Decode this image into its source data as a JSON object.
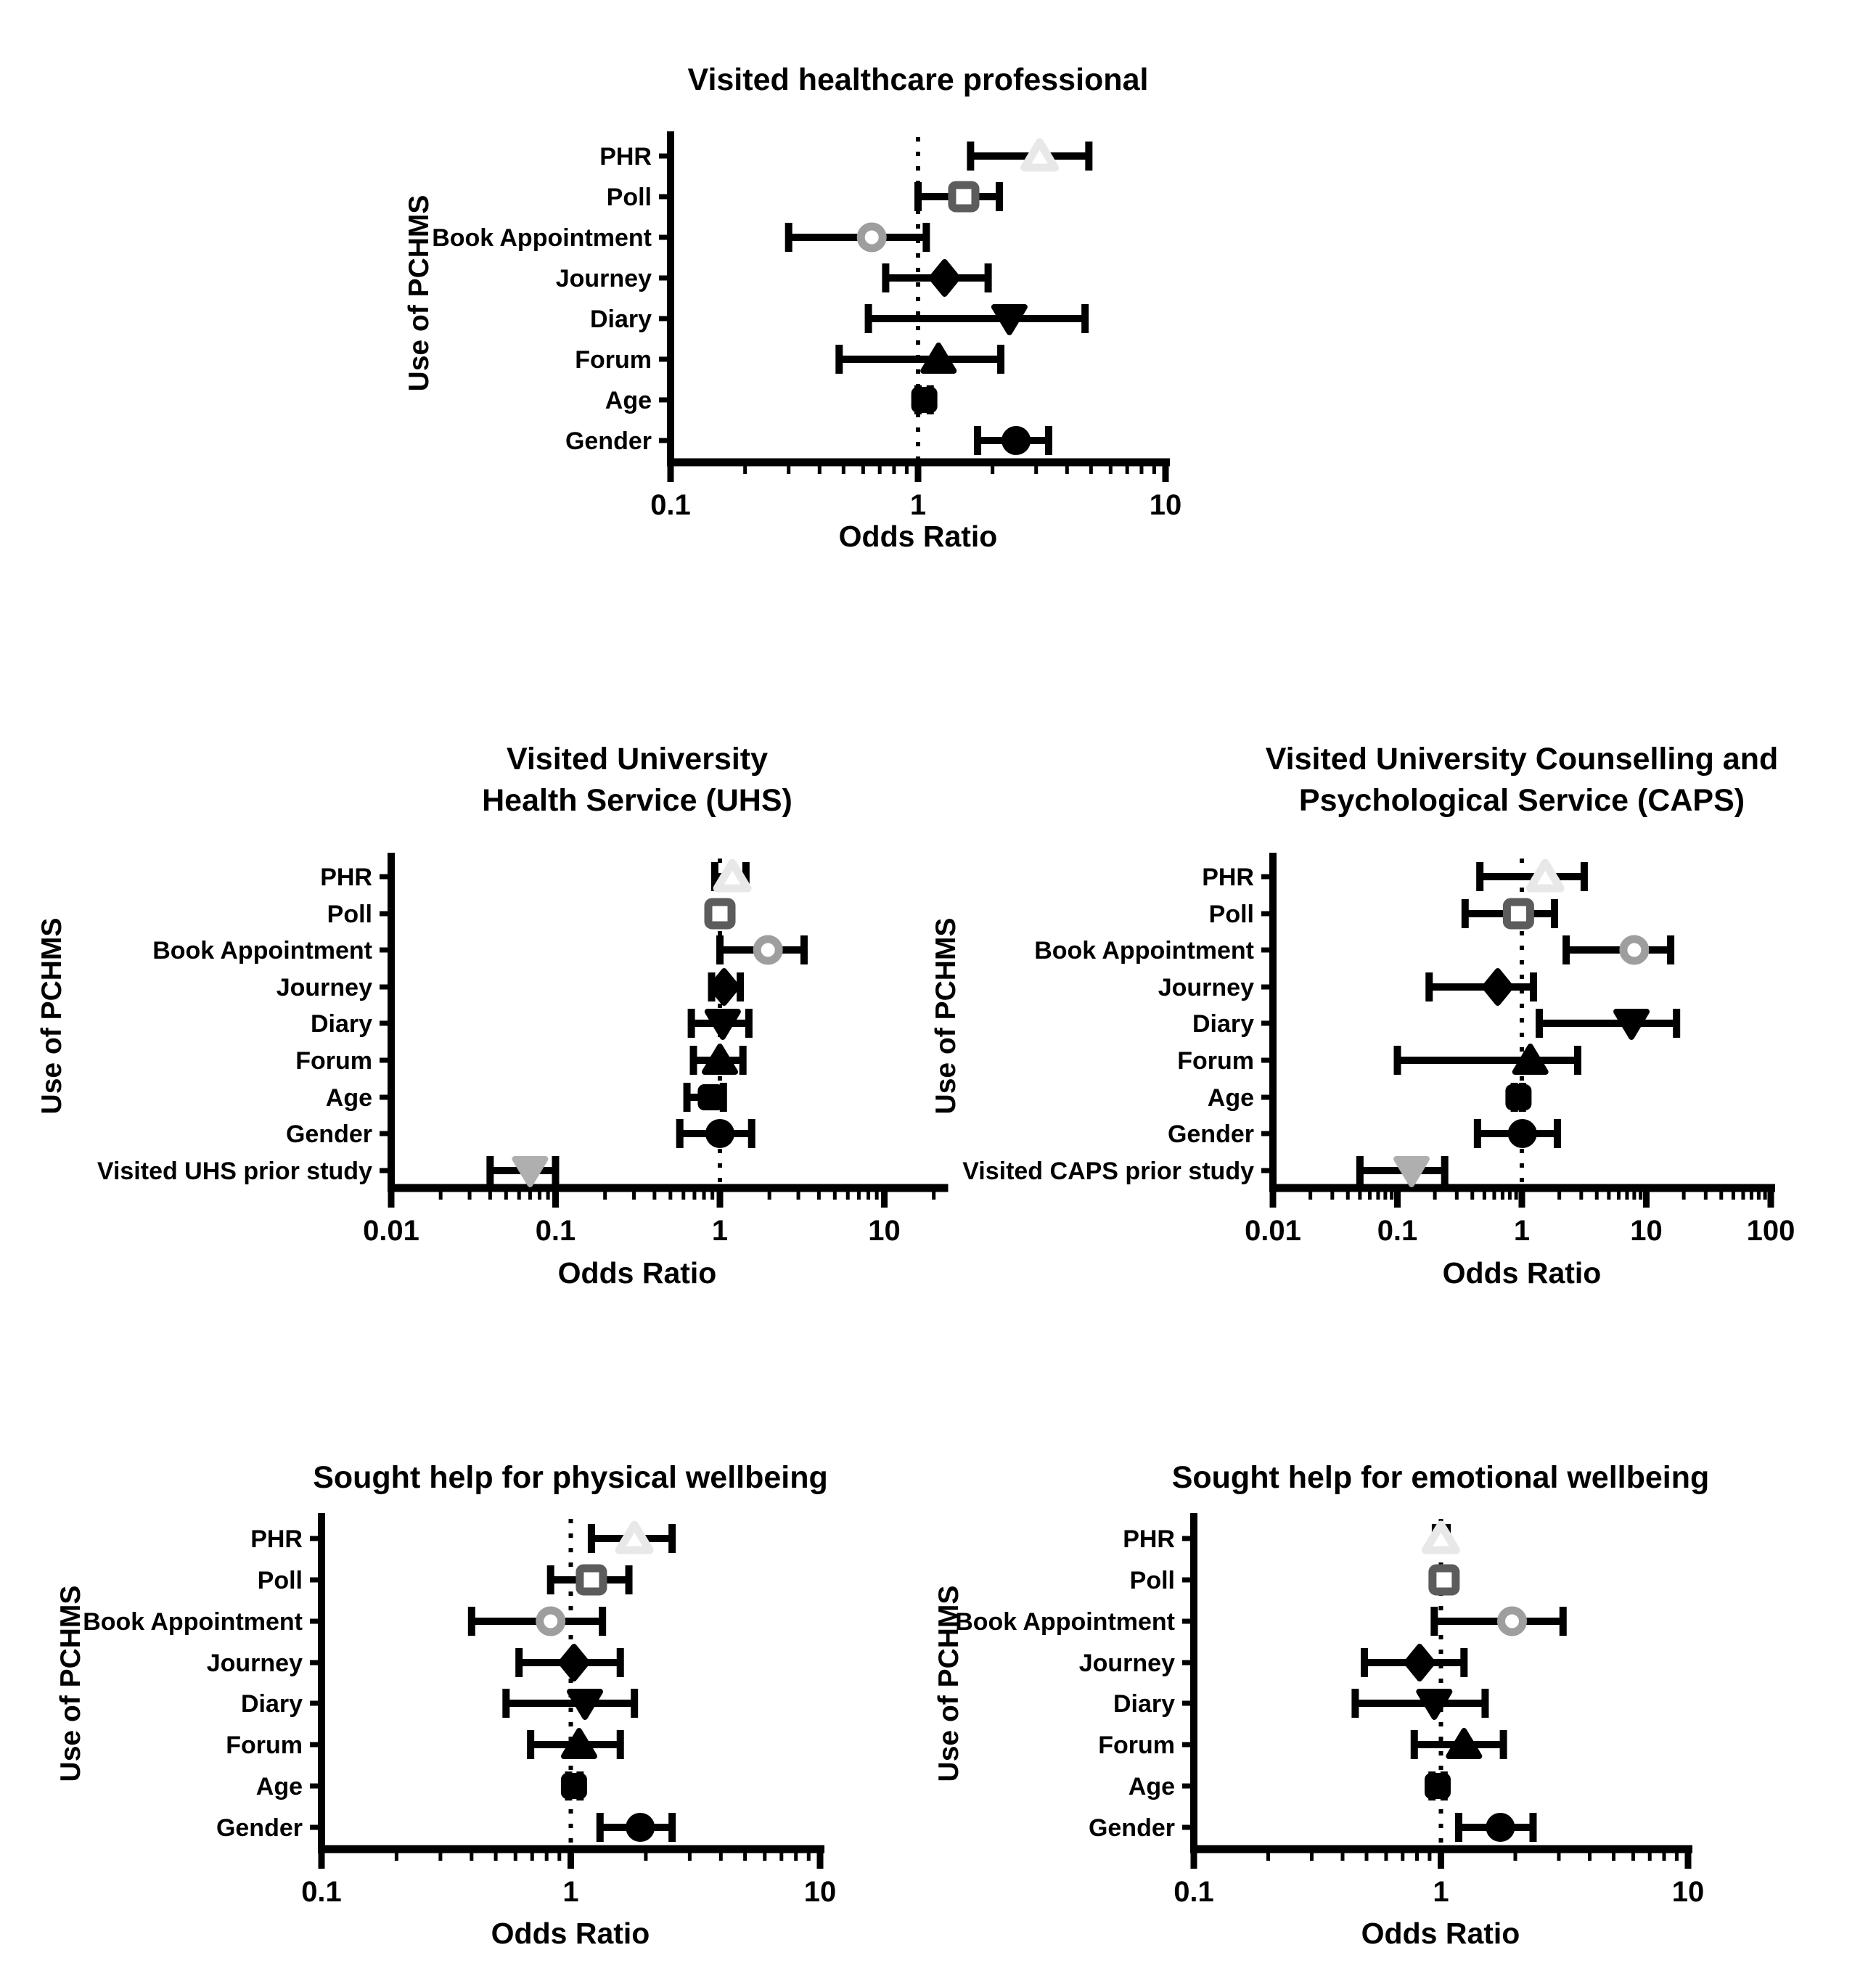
{
  "page": {
    "background": "#ffffff",
    "foreground": "#000000"
  },
  "chart_data": [
    {
      "type": "scatter",
      "variant": "forest-plot",
      "title": "Visited healthcare professional",
      "title_lines": [
        "Visited healthcare professional"
      ],
      "xlabel": "Odds Ratio",
      "ylabel": "Use of PCHMS",
      "x_scale": "log",
      "xlim": [
        0.1,
        10
      ],
      "x_ticks": [
        "0.1",
        "1",
        "10"
      ],
      "grid": false,
      "reference_line": 1,
      "reference_line_style": "dotted",
      "rows": [
        {
          "label": "PHR",
          "or": 3.1,
          "ci_low": 1.63,
          "ci_high": 4.9,
          "marker": "triangle-up",
          "marker_style": "open",
          "color": "#E8E8E8"
        },
        {
          "label": "Poll",
          "or": 1.53,
          "ci_low": 1.0,
          "ci_high": 2.13,
          "marker": "square",
          "marker_style": "open",
          "color": "#5C5C5C"
        },
        {
          "label": "Book Appointment",
          "or": 0.65,
          "ci_low": 0.3,
          "ci_high": 1.08,
          "marker": "circle",
          "marker_style": "open",
          "color": "#9E9E9E"
        },
        {
          "label": "Journey",
          "or": 1.28,
          "ci_low": 0.74,
          "ci_high": 1.92,
          "marker": "diamond",
          "marker_style": "filled",
          "color": "#000000"
        },
        {
          "label": "Diary",
          "or": 2.34,
          "ci_low": 0.63,
          "ci_high": 4.73,
          "marker": "triangle-down",
          "marker_style": "filled",
          "color": "#000000"
        },
        {
          "label": "Forum",
          "or": 1.21,
          "ci_low": 0.48,
          "ci_high": 2.16,
          "marker": "triangle-up",
          "marker_style": "filled",
          "color": "#000000"
        },
        {
          "label": "Age",
          "or": 1.06,
          "ci_low": 1.0,
          "ci_high": 1.12,
          "marker": "square",
          "marker_style": "filled",
          "color": "#000000"
        },
        {
          "label": "Gender",
          "or": 2.49,
          "ci_low": 1.74,
          "ci_high": 3.37,
          "marker": "circle",
          "marker_style": "filled",
          "color": "#000000"
        }
      ]
    },
    {
      "type": "scatter",
      "variant": "forest-plot",
      "title": "Visited University Health Service (UHS)",
      "title_lines": [
        "Visited University",
        "Health Service (UHS)"
      ],
      "xlabel": "Odds Ratio",
      "ylabel": "Use of PCHMS",
      "x_scale": "log",
      "xlim": [
        0.01,
        10
      ],
      "x_ticks": [
        "0.01",
        "0.1",
        "1",
        "10"
      ],
      "grid": false,
      "reference_line": 1,
      "reference_line_style": "dotted",
      "rows": [
        {
          "label": "PHR",
          "or": 1.19,
          "ci_low": 0.93,
          "ci_high": 1.44,
          "marker": "triangle-up",
          "marker_style": "open",
          "color": "#E8E8E8"
        },
        {
          "label": "Poll",
          "or": 1.0,
          "ci_low": 0.93,
          "ci_high": 1.08,
          "marker": "square",
          "marker_style": "open",
          "color": "#5C5C5C"
        },
        {
          "label": "Book Appointment",
          "or": 1.96,
          "ci_low": 1.0,
          "ci_high": 3.25,
          "marker": "circle",
          "marker_style": "open",
          "color": "#9E9E9E"
        },
        {
          "label": "Journey",
          "or": 1.06,
          "ci_low": 0.89,
          "ci_high": 1.33,
          "marker": "diamond",
          "marker_style": "filled",
          "color": "#000000"
        },
        {
          "label": "Diary",
          "or": 1.04,
          "ci_low": 0.67,
          "ci_high": 1.5,
          "marker": "triangle-down",
          "marker_style": "filled",
          "color": "#000000"
        },
        {
          "label": "Forum",
          "or": 1.0,
          "ci_low": 0.69,
          "ci_high": 1.38,
          "marker": "triangle-up",
          "marker_style": "filled",
          "color": "#000000"
        },
        {
          "label": "Age",
          "or": 0.88,
          "ci_low": 0.63,
          "ci_high": 1.05,
          "marker": "square",
          "marker_style": "filled",
          "color": "#000000"
        },
        {
          "label": "Gender",
          "or": 1.0,
          "ci_low": 0.57,
          "ci_high": 1.56,
          "marker": "circle",
          "marker_style": "filled",
          "color": "#000000"
        },
        {
          "label": "Visited UHS prior study",
          "or": 0.07,
          "ci_low": 0.04,
          "ci_high": 0.1,
          "marker": "triangle-down",
          "marker_style": "filled",
          "color": "#AFAFAF"
        }
      ]
    },
    {
      "type": "scatter",
      "variant": "forest-plot",
      "title": "Visited University Counselling and Psychological Service (CAPS)",
      "title_lines": [
        "Visited University Counselling and",
        "Psychological Service (CAPS)"
      ],
      "xlabel": "Odds Ratio",
      "ylabel": "Use of PCHMS",
      "x_scale": "log",
      "xlim": [
        0.01,
        100
      ],
      "x_ticks": [
        "0.01",
        "0.1",
        "1",
        "10",
        "100"
      ],
      "grid": false,
      "reference_line": 1,
      "reference_line_style": "dotted",
      "rows": [
        {
          "label": "PHR",
          "or": 1.54,
          "ci_low": 0.46,
          "ci_high": 3.17,
          "marker": "triangle-up",
          "marker_style": "open",
          "color": "#E8E8E8"
        },
        {
          "label": "Poll",
          "or": 0.94,
          "ci_low": 0.35,
          "ci_high": 1.83,
          "marker": "square",
          "marker_style": "open",
          "color": "#5C5C5C"
        },
        {
          "label": "Book Appointment",
          "or": 8.0,
          "ci_low": 2.27,
          "ci_high": 15.7,
          "marker": "circle",
          "marker_style": "open",
          "color": "#9E9E9E"
        },
        {
          "label": "Journey",
          "or": 0.64,
          "ci_low": 0.18,
          "ci_high": 1.24,
          "marker": "diamond",
          "marker_style": "filled",
          "color": "#000000"
        },
        {
          "label": "Diary",
          "or": 7.6,
          "ci_low": 1.38,
          "ci_high": 17.5,
          "marker": "triangle-down",
          "marker_style": "filled",
          "color": "#000000"
        },
        {
          "label": "Forum",
          "or": 1.17,
          "ci_low": 0.1,
          "ci_high": 2.81,
          "marker": "triangle-up",
          "marker_style": "filled",
          "color": "#000000"
        },
        {
          "label": "Age",
          "or": 0.94,
          "ci_low": 0.87,
          "ci_high": 1.01,
          "marker": "square",
          "marker_style": "filled",
          "color": "#000000"
        },
        {
          "label": "Gender",
          "or": 1.01,
          "ci_low": 0.44,
          "ci_high": 1.93,
          "marker": "circle",
          "marker_style": "filled",
          "color": "#000000"
        },
        {
          "label": "Visited CAPS prior study",
          "or": 0.13,
          "ci_low": 0.05,
          "ci_high": 0.24,
          "marker": "triangle-down",
          "marker_style": "filled",
          "color": "#AFAFAF"
        }
      ]
    },
    {
      "type": "scatter",
      "variant": "forest-plot",
      "title": "Sought help for physical wellbeing",
      "title_lines": [
        "Sought help for physical wellbeing"
      ],
      "xlabel": "Odds Ratio",
      "ylabel": "Use of PCHMS",
      "x_scale": "log",
      "xlim": [
        0.1,
        10
      ],
      "x_ticks": [
        "0.1",
        "1",
        "10"
      ],
      "grid": false,
      "reference_line": 1,
      "reference_line_style": "dotted",
      "rows": [
        {
          "label": "PHR",
          "or": 1.8,
          "ci_low": 1.21,
          "ci_high": 2.55,
          "marker": "triangle-up",
          "marker_style": "open",
          "color": "#E8E8E8"
        },
        {
          "label": "Poll",
          "or": 1.21,
          "ci_low": 0.83,
          "ci_high": 1.71,
          "marker": "square",
          "marker_style": "open",
          "color": "#5C5C5C"
        },
        {
          "label": "Book Appointment",
          "or": 0.83,
          "ci_low": 0.4,
          "ci_high": 1.34,
          "marker": "circle",
          "marker_style": "open",
          "color": "#9E9E9E"
        },
        {
          "label": "Journey",
          "or": 1.03,
          "ci_low": 0.62,
          "ci_high": 1.58,
          "marker": "diamond",
          "marker_style": "filled",
          "color": "#000000"
        },
        {
          "label": "Diary",
          "or": 1.14,
          "ci_low": 0.55,
          "ci_high": 1.8,
          "marker": "triangle-down",
          "marker_style": "filled",
          "color": "#000000"
        },
        {
          "label": "Forum",
          "or": 1.08,
          "ci_low": 0.69,
          "ci_high": 1.58,
          "marker": "triangle-up",
          "marker_style": "filled",
          "color": "#000000"
        },
        {
          "label": "Age",
          "or": 1.03,
          "ci_low": 0.98,
          "ci_high": 1.09,
          "marker": "square",
          "marker_style": "filled",
          "color": "#000000"
        },
        {
          "label": "Gender",
          "or": 1.9,
          "ci_low": 1.31,
          "ci_high": 2.55,
          "marker": "circle",
          "marker_style": "filled",
          "color": "#000000"
        }
      ]
    },
    {
      "type": "scatter",
      "variant": "forest-plot",
      "title": "Sought help for emotional wellbeing",
      "title_lines": [
        "Sought help for emotional wellbeing"
      ],
      "xlabel": "Odds Ratio",
      "ylabel": "Use of PCHMS",
      "x_scale": "log",
      "xlim": [
        0.1,
        10
      ],
      "x_ticks": [
        "0.1",
        "1",
        "10"
      ],
      "grid": false,
      "reference_line": 1,
      "reference_line_style": "dotted",
      "rows": [
        {
          "label": "PHR",
          "or": 1.0,
          "ci_low": 0.95,
          "ci_high": 1.06,
          "marker": "triangle-up",
          "marker_style": "open",
          "color": "#E8E8E8"
        },
        {
          "label": "Poll",
          "or": 1.03,
          "ci_low": 0.97,
          "ci_high": 1.1,
          "marker": "square",
          "marker_style": "open",
          "color": "#5C5C5C"
        },
        {
          "label": "Book Appointment",
          "or": 1.94,
          "ci_low": 0.94,
          "ci_high": 3.12,
          "marker": "circle",
          "marker_style": "open",
          "color": "#9E9E9E"
        },
        {
          "label": "Journey",
          "or": 0.82,
          "ci_low": 0.49,
          "ci_high": 1.24,
          "marker": "diamond",
          "marker_style": "filled",
          "color": "#000000"
        },
        {
          "label": "Diary",
          "or": 0.94,
          "ci_low": 0.45,
          "ci_high": 1.51,
          "marker": "triangle-down",
          "marker_style": "filled",
          "color": "#000000"
        },
        {
          "label": "Forum",
          "or": 1.24,
          "ci_low": 0.78,
          "ci_high": 1.79,
          "marker": "triangle-up",
          "marker_style": "filled",
          "color": "#000000"
        },
        {
          "label": "Age",
          "or": 0.97,
          "ci_low": 0.92,
          "ci_high": 1.03,
          "marker": "square",
          "marker_style": "filled",
          "color": "#000000"
        },
        {
          "label": "Gender",
          "or": 1.74,
          "ci_low": 1.18,
          "ci_high": 2.36,
          "marker": "circle",
          "marker_style": "filled",
          "color": "#000000"
        }
      ]
    }
  ]
}
